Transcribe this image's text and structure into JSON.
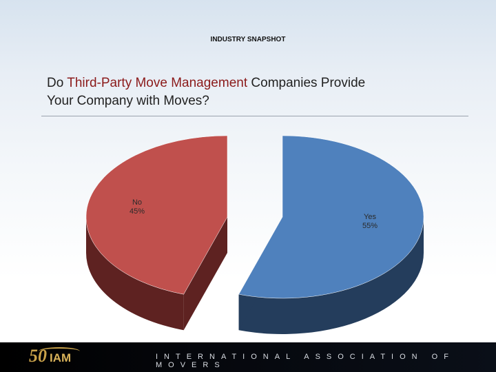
{
  "header": {
    "label": "INDUSTRY SNAPSHOT"
  },
  "title": {
    "part1": "Do ",
    "highlight": "Third-Party Move Management",
    "part2": " Companies Provide",
    "line2": "Your Company with Moves?"
  },
  "chart_data": {
    "type": "pie",
    "title": "",
    "slices": [
      {
        "label": "Yes",
        "value": 55,
        "display": "55%",
        "color": "#4f81bd",
        "side_color": "#243d5c"
      },
      {
        "label": "No",
        "value": 45,
        "display": "45%",
        "color": "#c0504d",
        "side_color": "#5e2221"
      }
    ],
    "exploded": true,
    "three_d": true,
    "legend": "none"
  },
  "footer": {
    "logo_number": "50",
    "logo_text": "IAM",
    "org_name": "INTERNATIONAL ASSOCIATION OF MOVERS"
  }
}
